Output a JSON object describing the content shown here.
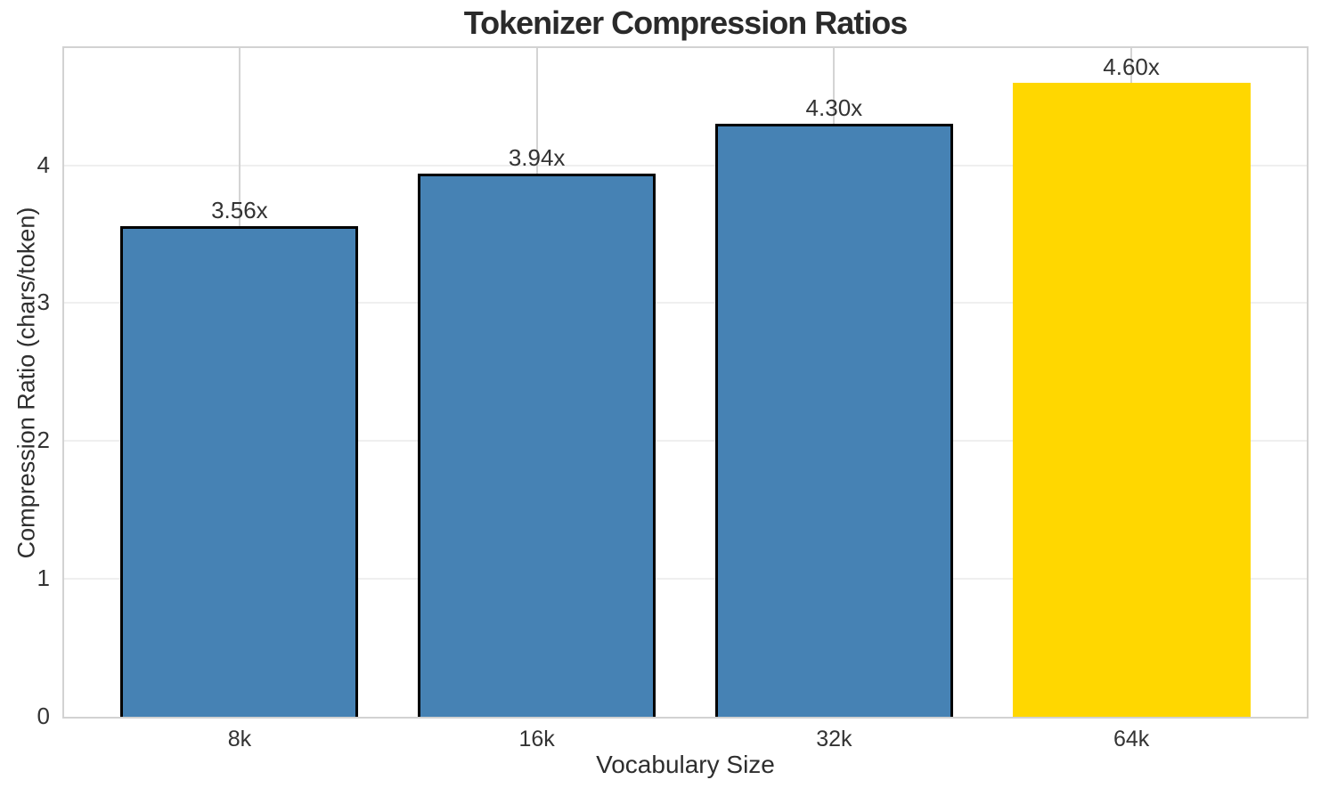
{
  "chart_data": {
    "type": "bar",
    "title": "Tokenizer Compression Ratios",
    "xlabel": "Vocabulary Size",
    "ylabel": "Compression Ratio (chars/token)",
    "categories": [
      "8k",
      "16k",
      "32k",
      "64k"
    ],
    "values": [
      3.56,
      3.94,
      4.3,
      4.6
    ],
    "bar_labels": [
      "3.56x",
      "3.94x",
      "4.30x",
      "4.60x"
    ],
    "bar_colors": [
      "#4682B4",
      "#4682B4",
      "#4682B4",
      "#FFD700"
    ],
    "bar_edge_colors": [
      "#000000",
      "#000000",
      "#000000",
      "none"
    ],
    "highlight_index": 3,
    "yticks": [
      0,
      1,
      2,
      3,
      4
    ],
    "ylim": [
      0,
      4.85
    ],
    "bar_width_units": 0.8,
    "grid": "both",
    "legend": "none"
  }
}
